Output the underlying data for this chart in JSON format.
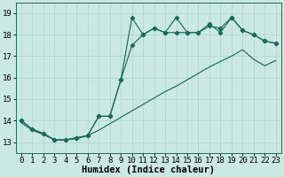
{
  "xlabel": "Humidex (Indice chaleur)",
  "bg_color": "#cce8e3",
  "grid_color": "#aad4cf",
  "line_color": "#1a6b5e",
  "xlim": [
    -0.5,
    23.5
  ],
  "ylim": [
    12.5,
    19.5
  ],
  "xticks": [
    0,
    1,
    2,
    3,
    4,
    5,
    6,
    7,
    8,
    9,
    10,
    11,
    12,
    13,
    14,
    15,
    16,
    17,
    18,
    19,
    20,
    21,
    22,
    23
  ],
  "yticks": [
    13,
    14,
    15,
    16,
    17,
    18,
    19
  ],
  "line_top_x": [
    0,
    1,
    2,
    3,
    4,
    5,
    6,
    7,
    8,
    9,
    10,
    11,
    12,
    13,
    14,
    15,
    16,
    17,
    18,
    19,
    20,
    21,
    22,
    23
  ],
  "line_top_y": [
    14.0,
    13.6,
    13.4,
    13.1,
    13.1,
    13.2,
    13.3,
    14.2,
    14.2,
    15.9,
    18.8,
    18.0,
    18.3,
    18.1,
    18.8,
    18.1,
    18.1,
    18.5,
    18.1,
    18.8,
    18.2,
    18.0,
    17.7,
    17.6
  ],
  "line_mid_x": [
    0,
    1,
    2,
    3,
    4,
    5,
    6,
    7,
    8,
    9,
    10,
    11,
    12,
    13,
    14,
    15,
    16,
    17,
    18,
    19,
    20,
    21,
    22,
    23
  ],
  "line_mid_y": [
    14.0,
    13.6,
    13.4,
    13.1,
    13.1,
    13.2,
    13.3,
    14.2,
    14.2,
    15.9,
    17.5,
    18.0,
    18.3,
    18.1,
    18.1,
    18.1,
    18.1,
    18.4,
    18.3,
    18.8,
    18.2,
    18.0,
    17.7,
    17.6
  ],
  "line_bot_x": [
    0,
    1,
    2,
    3,
    4,
    5,
    6,
    7,
    8,
    9,
    10,
    11,
    12,
    13,
    14,
    15,
    16,
    17,
    18,
    19,
    20,
    21,
    22,
    23
  ],
  "line_bot_y": [
    13.9,
    13.55,
    13.35,
    13.1,
    13.1,
    13.15,
    13.3,
    13.55,
    13.85,
    14.15,
    14.45,
    14.75,
    15.05,
    15.35,
    15.6,
    15.9,
    16.2,
    16.5,
    16.75,
    17.0,
    17.3,
    16.85,
    16.55,
    16.8
  ],
  "tick_fontsize": 6.5,
  "label_fontsize": 7.5
}
